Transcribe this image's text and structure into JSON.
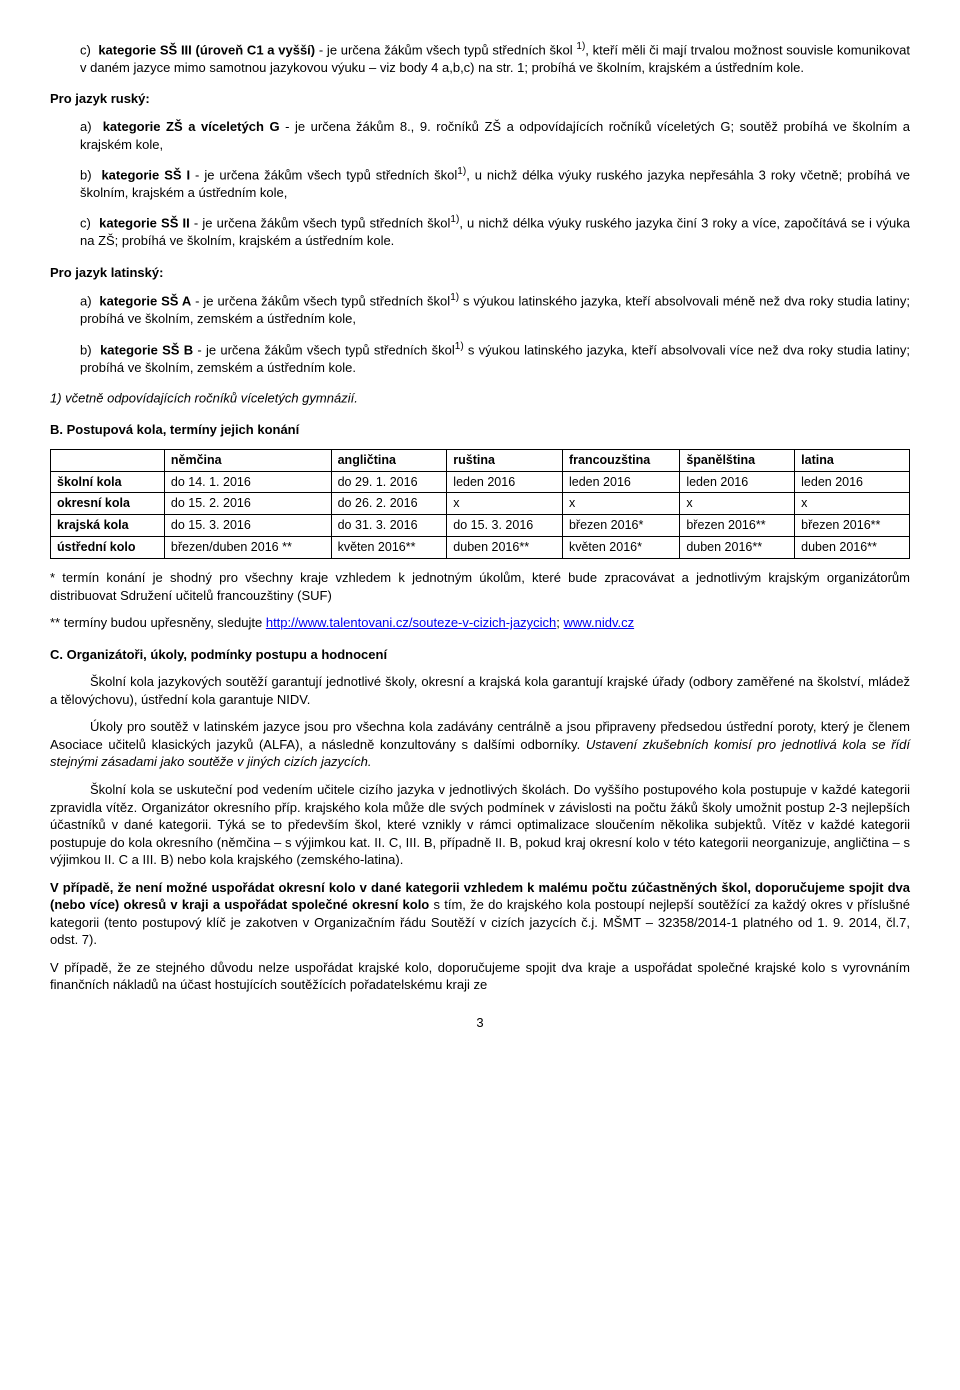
{
  "c_item": {
    "prefix": "c)",
    "label": "kategorie SŠ III (úroveň C1 a vyšší)",
    "rest": " - je určena žákům všech typů středních škol ",
    "sup": "1)",
    "rest2": ", kteří měli či mají trvalou možnost souvisle komunikovat v daném jazyce mimo samotnou jazykovou výuku – viz body 4 a,b,c) na str. 1; probíhá ve školním, krajském a ústředním kole."
  },
  "rusky_head": "Pro jazyk ruský:",
  "rusky_a": {
    "prefix": "a)",
    "label": "kategorie ZŠ a víceletých G",
    "rest": " - je určena žákům 8., 9. ročníků ZŠ a odpovídajících ročníků víceletých G; soutěž probíhá ve školním a krajském kole,"
  },
  "rusky_b": {
    "prefix": "b)",
    "label": "kategorie SŠ I",
    "rest": " - je určena žákům všech typů středních škol",
    "sup": "1)",
    "rest2": ", u nichž délka výuky ruského jazyka nepřesáhla 3 roky včetně; probíhá ve školním, krajském a ústředním kole,"
  },
  "rusky_c": {
    "prefix": "c)",
    "label": "kategorie SŠ II",
    "rest": " - je určena žákům všech typů středních škol",
    "sup": "1)",
    "rest2": ", u nichž délka výuky ruského jazyka činí 3 roky a více, započítává se i výuka na ZŠ; probíhá ve školním, krajském a ústředním kole."
  },
  "latinsky_head": "Pro jazyk latinský:",
  "lat_a": {
    "prefix": "a)",
    "label": "kategorie SŠ A",
    "rest": " - je určena žákům všech typů středních škol",
    "sup": "1)",
    "rest2": " s výukou latinského jazyka, kteří absolvovali méně než dva roky studia latiny; probíhá ve školním, zemském a ústředním kole,"
  },
  "lat_b": {
    "prefix": "b)",
    "label": "kategorie SŠ B",
    "rest": " - je určena žákům všech typů středních škol",
    "sup": "1)",
    "rest2": " s výukou latinského jazyka, kteří absolvovali více než dva roky studia latiny; probíhá ve školním, zemském a ústředním kole."
  },
  "footnote": "1) včetně odpovídajících ročníků víceletých gymnázií.",
  "section_b": "B. Postupová kola, termíny jejich konání",
  "table": {
    "headers": [
      "",
      "němčina",
      "angličtina",
      "ruština",
      "francouzština",
      "španělština",
      "latina"
    ],
    "rows": [
      [
        "školní kola",
        "do 14. 1. 2016",
        "do 29. 1. 2016",
        "leden 2016",
        "leden 2016",
        "leden 2016",
        "leden 2016"
      ],
      [
        "okresní kola",
        "do 15. 2. 2016",
        "do 26. 2. 2016",
        "x",
        "x",
        "x",
        "x"
      ],
      [
        "krajská kola",
        "do 15. 3. 2016",
        "do 31. 3. 2016",
        "do 15. 3. 2016",
        "březen 2016*",
        "březen 2016**",
        "březen 2016**"
      ],
      [
        "ústřední kolo",
        "březen/duben 2016 **",
        "květen 2016**",
        "duben 2016**",
        "květen 2016*",
        "duben 2016**",
        "duben 2016**"
      ]
    ]
  },
  "star_note1": "* termín konání je shodný pro všechny kraje vzhledem k jednotným úkolům, které bude zpracovávat a jednotlivým krajským organizátorům distribuovat Sdružení učitelů francouzštiny (SUF)",
  "star_note2a": "** termíny budou upřesněny, sledujte ",
  "link1": "http://www.talentovani.cz/souteze-v-cizich-jazycich",
  "star_note2b": "; ",
  "link2": "www.nidv.cz",
  "section_c": "C. Organizátoři, úkoly, podmínky postupu a hodnocení",
  "para_c1": "Školní kola jazykových soutěží garantují jednotlivé školy, okresní a krajská kola garantují krajské úřady (odbory zaměřené na školství, mládež a tělovýchovu), ústřední kola garantuje NIDV.",
  "para_c2a": "Úkoly pro soutěž v latinském jazyce jsou pro všechna kola zadávány centrálně a jsou připraveny předsedou ústřední poroty, který je členem Asociace učitelů klasických jazyků (ALFA), a následně konzultovány s dalšími odborníky. ",
  "para_c2b": "Ustavení zkušebních komisí pro jednotlivá kola se řídí stejnými zásadami jako soutěže v jiných cizích jazycích.",
  "para_c3": "Školní kola se uskuteční pod vedením učitele cizího jazyka v jednotlivých školách. Do vyššího postupového kola postupuje v každé kategorii zpravidla vítěz. Organizátor okresního příp. krajského kola může dle svých podmínek v závislosti na počtu žáků školy umožnit postup 2-3 nejlepších účastníků v dané kategorii. Týká se to především škol, které vznikly v rámci optimalizace sloučením několika subjektů. Vítěz v každé kategorii postupuje do kola okresního (němčina – s výjimkou kat. II. C, III. B, případně II. B, pokud kraj okresní kolo v této kategorii neorganizuje, angličtina – s výjimkou II. C a III. B) nebo kola krajského (zemského-latina).",
  "para_bold1": "V případě, že není možné uspořádat okresní kolo v dané kategorii vzhledem k malému počtu zúčastněných škol, doporučujeme spojit dva (nebo více) okresů v kraji a uspořádat společné okresní kolo",
  "para_bold1_rest": " s tím, že do krajského kola postoupí nejlepší soutěžící za každý okres v příslušné kategorii (tento postupový klíč je zakotven v Organizačním řádu Soutěží v cizích jazycích č.j. MŠMT – 32358/2014-1 platného od 1. 9. 2014, čl.7, odst. 7).",
  "para_last": "V případě, že ze stejného důvodu nelze uspořádat krajské kolo, doporučujeme spojit dva kraje a uspořádat společné krajské kolo s vyrovnáním finančních nákladů na účast hostujících soutěžících pořadatelskému kraji ze",
  "page_number": "3"
}
